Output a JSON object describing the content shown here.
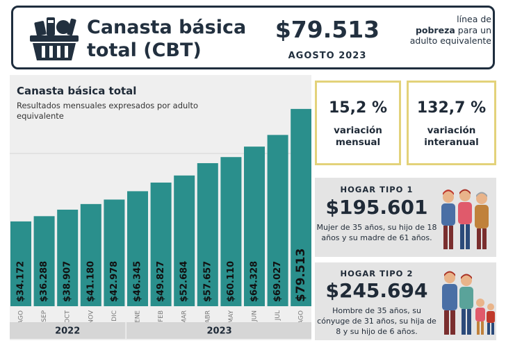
{
  "header": {
    "title": "Canasta básica total (CBT)",
    "price": "$79.513",
    "date": "AGOSTO 2023",
    "note_pre": "línea de",
    "note_bold": "pobreza",
    "note_post": "para un adulto equivalente"
  },
  "chart_data": {
    "type": "bar",
    "title": "Canasta básica total",
    "subtitle": "Resultados mensuales expresados por adulto equivalente",
    "categories": [
      "AGO",
      "SEP",
      "OCT",
      "NOV",
      "DIC",
      "ENE",
      "FEB",
      "MAR",
      "ABR",
      "MAY",
      "JUN",
      "JUL",
      "AGO"
    ],
    "values": [
      34172,
      36288,
      38907,
      41180,
      42978,
      46345,
      49827,
      52684,
      57657,
      60110,
      64328,
      69027,
      79513
    ],
    "labels": [
      "$34.172",
      "$36.288",
      "$38.907",
      "$41.180",
      "$42.978",
      "$46.345",
      "$49.827",
      "$52.684",
      "$57.657",
      "$60.110",
      "$64.328",
      "$69.027",
      "$79.513"
    ],
    "years": [
      {
        "label": "2022",
        "from": 0,
        "to": 4
      },
      {
        "label": "2023",
        "from": 5,
        "to": 12
      }
    ],
    "ylim": [
      0,
      82000
    ],
    "color": "#2a8f8c"
  },
  "stats": {
    "monthly_value": "15,2 %",
    "monthly_label": "variación mensual",
    "annual_value": "132,7 %",
    "annual_label": "variación interanual"
  },
  "hogar1": {
    "title": "HOGAR TIPO 1",
    "price": "$195.601",
    "desc": "Mujer de 35 años, su hijo de 18 años y su madre de 61 años."
  },
  "hogar2": {
    "title": "HOGAR TIPO 2",
    "price": "$245.694",
    "desc": "Hombre de 35 años, su cónyuge de 31 años, su hija de 8 y su hijo de 6 años."
  }
}
